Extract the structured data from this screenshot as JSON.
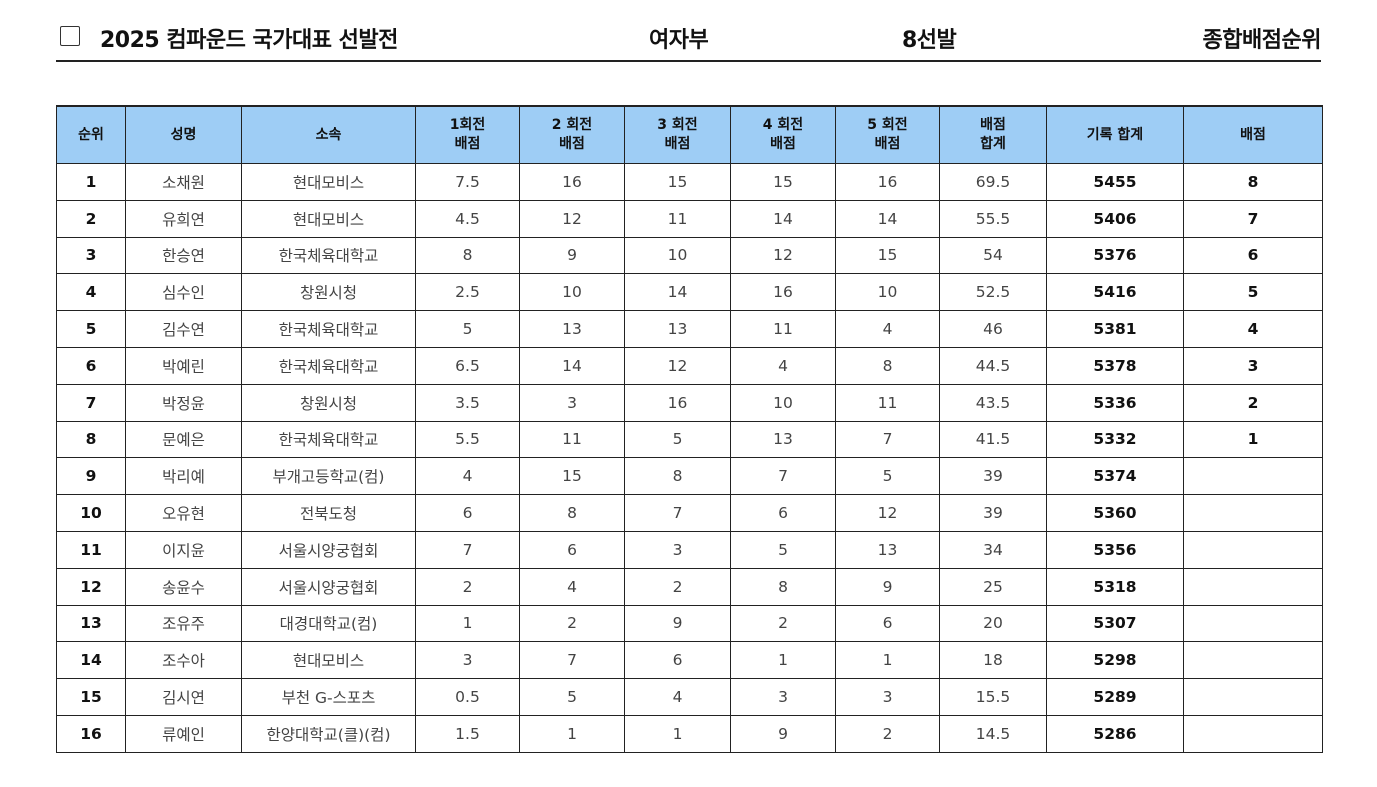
{
  "header": {
    "title": "2025 컴파운드 국가대표 선발전",
    "division": "여자부",
    "selection": "8선발",
    "ranking": "종합배점순위"
  },
  "table": {
    "columns": [
      {
        "line1": "순위",
        "line2": ""
      },
      {
        "line1": "성명",
        "line2": ""
      },
      {
        "line1": "소속",
        "line2": ""
      },
      {
        "line1": "1회전",
        "line2": "배점"
      },
      {
        "line1": "2 회전",
        "line2": "배점"
      },
      {
        "line1": "3 회전",
        "line2": "배점"
      },
      {
        "line1": "4 회전",
        "line2": "배점"
      },
      {
        "line1": "5 회전",
        "line2": "배점"
      },
      {
        "line1": "배점",
        "line2": "합계"
      },
      {
        "line1": "기록 합계",
        "line2": ""
      },
      {
        "line1": "배점",
        "line2": ""
      }
    ],
    "rows": [
      {
        "rank": "1",
        "name": "소채원",
        "team": "현대모비스",
        "r1": "7.5",
        "r2": "16",
        "r3": "15",
        "r4": "15",
        "r5": "16",
        "pt_sum": "69.5",
        "score_total": "5455",
        "points": "8"
      },
      {
        "rank": "2",
        "name": "유희연",
        "team": "현대모비스",
        "r1": "4.5",
        "r2": "12",
        "r3": "11",
        "r4": "14",
        "r5": "14",
        "pt_sum": "55.5",
        "score_total": "5406",
        "points": "7"
      },
      {
        "rank": "3",
        "name": "한승연",
        "team": "한국체육대학교",
        "r1": "8",
        "r2": "9",
        "r3": "10",
        "r4": "12",
        "r5": "15",
        "pt_sum": "54",
        "score_total": "5376",
        "points": "6"
      },
      {
        "rank": "4",
        "name": "심수인",
        "team": "창원시청",
        "r1": "2.5",
        "r2": "10",
        "r3": "14",
        "r4": "16",
        "r5": "10",
        "pt_sum": "52.5",
        "score_total": "5416",
        "points": "5"
      },
      {
        "rank": "5",
        "name": "김수연",
        "team": "한국체육대학교",
        "r1": "5",
        "r2": "13",
        "r3": "13",
        "r4": "11",
        "r5": "4",
        "pt_sum": "46",
        "score_total": "5381",
        "points": "4"
      },
      {
        "rank": "6",
        "name": "박예린",
        "team": "한국체육대학교",
        "r1": "6.5",
        "r2": "14",
        "r3": "12",
        "r4": "4",
        "r5": "8",
        "pt_sum": "44.5",
        "score_total": "5378",
        "points": "3"
      },
      {
        "rank": "7",
        "name": "박정윤",
        "team": "창원시청",
        "r1": "3.5",
        "r2": "3",
        "r3": "16",
        "r4": "10",
        "r5": "11",
        "pt_sum": "43.5",
        "score_total": "5336",
        "points": "2"
      },
      {
        "rank": "8",
        "name": "문예은",
        "team": "한국체육대학교",
        "r1": "5.5",
        "r2": "11",
        "r3": "5",
        "r4": "13",
        "r5": "7",
        "pt_sum": "41.5",
        "score_total": "5332",
        "points": "1"
      },
      {
        "rank": "9",
        "name": "박리예",
        "team": "부개고등학교(컴)",
        "r1": "4",
        "r2": "15",
        "r3": "8",
        "r4": "7",
        "r5": "5",
        "pt_sum": "39",
        "score_total": "5374",
        "points": ""
      },
      {
        "rank": "10",
        "name": "오유현",
        "team": "전북도청",
        "r1": "6",
        "r2": "8",
        "r3": "7",
        "r4": "6",
        "r5": "12",
        "pt_sum": "39",
        "score_total": "5360",
        "points": ""
      },
      {
        "rank": "11",
        "name": "이지윤",
        "team": "서울시양궁협회",
        "r1": "7",
        "r2": "6",
        "r3": "3",
        "r4": "5",
        "r5": "13",
        "pt_sum": "34",
        "score_total": "5356",
        "points": ""
      },
      {
        "rank": "12",
        "name": "송윤수",
        "team": "서울시양궁협회",
        "r1": "2",
        "r2": "4",
        "r3": "2",
        "r4": "8",
        "r5": "9",
        "pt_sum": "25",
        "score_total": "5318",
        "points": ""
      },
      {
        "rank": "13",
        "name": "조유주",
        "team": "대경대학교(컴)",
        "r1": "1",
        "r2": "2",
        "r3": "9",
        "r4": "2",
        "r5": "6",
        "pt_sum": "20",
        "score_total": "5307",
        "points": ""
      },
      {
        "rank": "14",
        "name": "조수아",
        "team": "현대모비스",
        "r1": "3",
        "r2": "7",
        "r3": "6",
        "r4": "1",
        "r5": "1",
        "pt_sum": "18",
        "score_total": "5298",
        "points": ""
      },
      {
        "rank": "15",
        "name": "김시연",
        "team": "부천 G-스포츠",
        "r1": "0.5",
        "r2": "5",
        "r3": "4",
        "r4": "3",
        "r5": "3",
        "pt_sum": "15.5",
        "score_total": "5289",
        "points": ""
      },
      {
        "rank": "16",
        "name": "류예인",
        "team": "한양대학교(클)(컴)",
        "r1": "1.5",
        "r2": "1",
        "r3": "1",
        "r4": "9",
        "r5": "2",
        "pt_sum": "14.5",
        "score_total": "5286",
        "points": ""
      }
    ]
  }
}
